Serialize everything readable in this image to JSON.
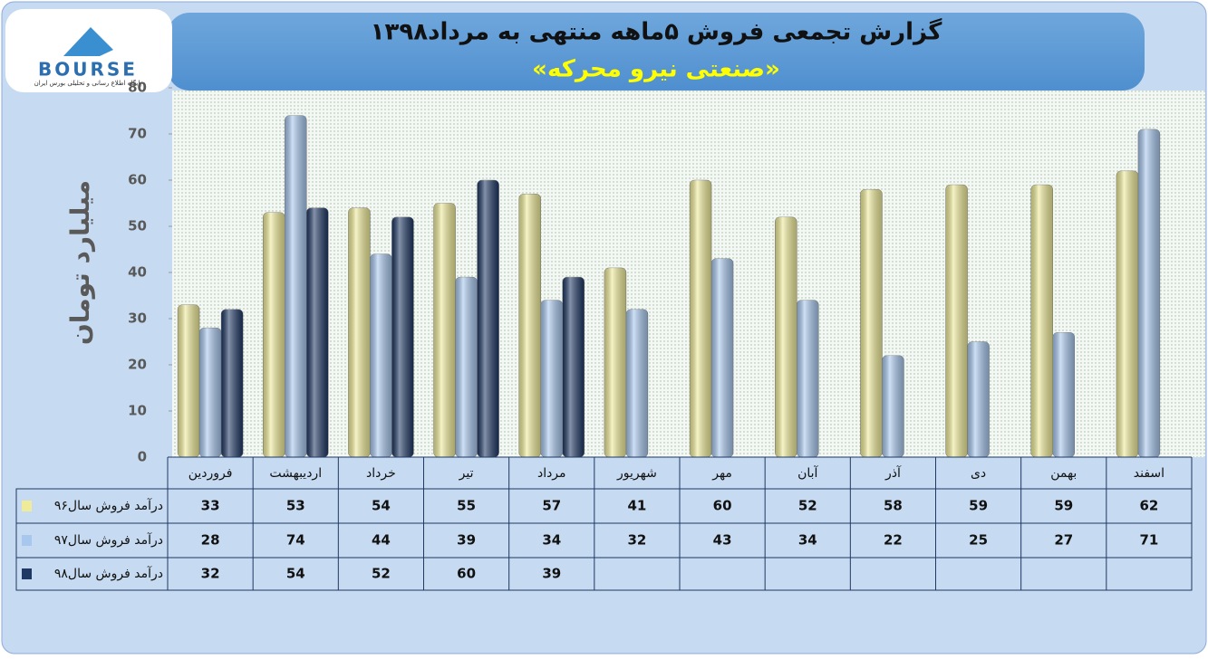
{
  "logo": {
    "name": "BOURSE",
    "tagline": "پایگاه اطلاع رسانی و تحلیلی بورس ایران"
  },
  "chart_data": {
    "type": "bar",
    "title": "گزارش تجمعی فروش ۵ماهه منتهی به مرداد۱۳۹۸",
    "subtitle": "«صنعتی نیرو محرکه»",
    "y_label": "میلیارد تومان",
    "categories": [
      "فروردین",
      "اردیبهشت",
      "خرداد",
      "تیر",
      "مرداد",
      "شهریور",
      "مهر",
      "آبان",
      "آذر",
      "دی",
      "بهمن",
      "اسفند"
    ],
    "series": [
      {
        "name": "درآمد فروش سال۹۶",
        "color": "#efeb98",
        "values": [
          33,
          53,
          54,
          55,
          57,
          41,
          60,
          52,
          58,
          59,
          59,
          62
        ]
      },
      {
        "name": "درآمد فروش سال۹۷",
        "color": "#a7c7ee",
        "values": [
          28,
          74,
          44,
          39,
          34,
          32,
          43,
          34,
          22,
          25,
          27,
          71
        ]
      },
      {
        "name": "درآمد فروش سال۹۸",
        "color": "#1f3864",
        "values": [
          32,
          54,
          52,
          60,
          39,
          null,
          null,
          null,
          null,
          null,
          null,
          null
        ]
      }
    ],
    "ylim": [
      0,
      80
    ],
    "yticks": [
      0,
      10,
      20,
      30,
      40,
      50,
      60,
      70,
      80
    ],
    "grid": false
  }
}
